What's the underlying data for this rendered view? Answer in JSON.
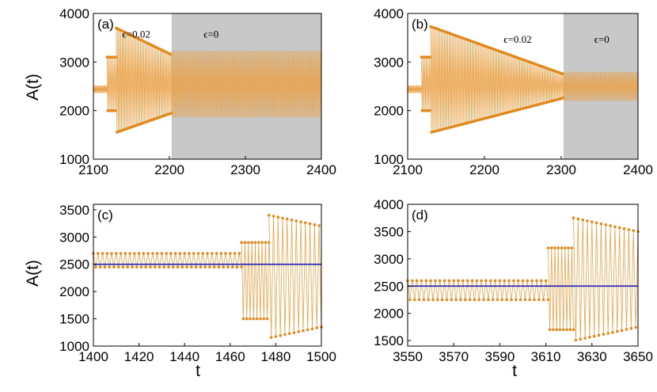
{
  "colors": {
    "signal": "#e08a1e",
    "signal_light": "#e9a24a",
    "green": "#6a9a2a",
    "reference": "#2b2bb3",
    "shade": "#c8c8c8",
    "axis": "#000000"
  },
  "ylabel": "A(t)",
  "xlabel": "t",
  "chart_data": [
    {
      "id": "a",
      "type": "line",
      "panel_label": "(a)",
      "xlim": [
        2100,
        2400
      ],
      "ylim": [
        1000,
        4000
      ],
      "xticks": [
        "2100",
        "2200",
        "2300",
        "2400"
      ],
      "yticks": [
        "1000",
        "2000",
        "3000",
        "4000"
      ],
      "shaded_region": [
        2203,
        2400
      ],
      "annotations": [
        {
          "text": "ϵ=0.02",
          "x": 2138,
          "y": 3500
        },
        {
          "text": "ϵ=0",
          "x": 2245,
          "y": 3500
        }
      ],
      "segments": [
        {
          "t0": 2100,
          "t1": 2118,
          "high": 2520,
          "low": 2360,
          "period": 1.5,
          "dots": false
        },
        {
          "t0": 2118,
          "t1": 2130,
          "high": 3100,
          "low": 2000,
          "period": 2,
          "dots": true
        },
        {
          "t0": 2130,
          "t1": 2203,
          "high": [
            3700,
            3150
          ],
          "low": [
            1550,
            1950
          ],
          "period": 2,
          "dots": true
        },
        {
          "t0": 2203,
          "t1": 2400,
          "high": 3230,
          "low": 1860,
          "period": 2,
          "dots": false
        }
      ]
    },
    {
      "id": "b",
      "type": "line",
      "panel_label": "(b)",
      "xlim": [
        2100,
        2400
      ],
      "ylim": [
        1000,
        4000
      ],
      "xticks": [
        "2100",
        "2200",
        "2300",
        "2400"
      ],
      "yticks": [
        "1000",
        "2000",
        "3000",
        "4000"
      ],
      "shaded_region": [
        2303,
        2400
      ],
      "annotations": [
        {
          "text": "ϵ=0.02",
          "x": 2225,
          "y": 3400
        },
        {
          "text": "ϵ=0",
          "x": 2343,
          "y": 3400
        }
      ],
      "segments": [
        {
          "t0": 2100,
          "t1": 2118,
          "high": 2520,
          "low": 2360,
          "period": 1.5,
          "dots": false
        },
        {
          "t0": 2118,
          "t1": 2130,
          "high": 3100,
          "low": 2000,
          "period": 2,
          "dots": true
        },
        {
          "t0": 2130,
          "t1": 2303,
          "high": [
            3730,
            2750
          ],
          "low": [
            1550,
            2260
          ],
          "period": 2,
          "dots": true
        },
        {
          "t0": 2303,
          "t1": 2400,
          "high": 2800,
          "low": 2200,
          "period": 2,
          "dots": false
        }
      ]
    },
    {
      "id": "c",
      "type": "line",
      "panel_label": "(c)",
      "xlim": [
        1400,
        1500
      ],
      "ylim": [
        1000,
        3600
      ],
      "xticks": [
        "1400",
        "1420",
        "1440",
        "1460",
        "1480",
        "1500"
      ],
      "yticks": [
        "1000",
        "1500",
        "2000",
        "2500",
        "3000",
        "3500"
      ],
      "reference_line": 2500,
      "segments": [
        {
          "t0": 1400,
          "t1": 1465,
          "high": 2700,
          "low": 2450,
          "period": 2,
          "dots": true
        },
        {
          "t0": 1465,
          "t1": 1477,
          "high": 2900,
          "low": 1500,
          "period": 1.5,
          "dots": true
        },
        {
          "t0": 1477,
          "t1": 1500,
          "high": [
            3400,
            3200
          ],
          "low": [
            1150,
            1350
          ],
          "period": 2,
          "dots": true
        }
      ]
    },
    {
      "id": "d",
      "type": "line",
      "panel_label": "(d)",
      "xlim": [
        3550,
        3650
      ],
      "ylim": [
        1400,
        4000
      ],
      "xticks": [
        "3550",
        "3570",
        "3590",
        "3610",
        "3630",
        "3650"
      ],
      "yticks": [
        "1500",
        "2000",
        "2500",
        "3000",
        "3500",
        "4000"
      ],
      "reference_line": 2500,
      "segments": [
        {
          "t0": 3550,
          "t1": 3611,
          "high": 2600,
          "low": 2250,
          "period": 2,
          "dots": true
        },
        {
          "t0": 3611,
          "t1": 3622,
          "high": 3200,
          "low": 1700,
          "period": 1.5,
          "dots": true
        },
        {
          "t0": 3622,
          "t1": 3650,
          "high": [
            3750,
            3500
          ],
          "low": [
            1500,
            1750
          ],
          "period": 2,
          "dots": true
        }
      ]
    }
  ]
}
